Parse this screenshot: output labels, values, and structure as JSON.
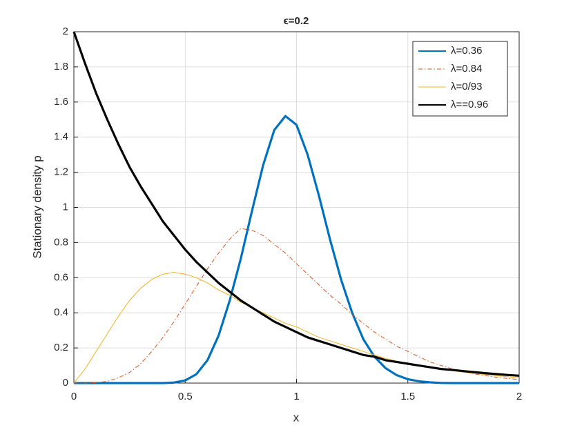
{
  "chart_data": {
    "type": "line",
    "title": "ϵ=0.2",
    "xlabel": "x",
    "ylabel": "Stationary density p",
    "x": [
      0,
      0.05,
      0.1,
      0.15,
      0.2,
      0.25,
      0.3,
      0.35,
      0.4,
      0.45,
      0.5,
      0.55,
      0.6,
      0.65,
      0.7,
      0.75,
      0.8,
      0.85,
      0.9,
      0.95,
      1,
      1.05,
      1.1,
      1.15,
      1.2,
      1.25,
      1.3,
      1.35,
      1.4,
      1.45,
      1.5,
      1.55,
      1.6,
      1.65,
      1.7,
      1.75,
      1.8,
      1.85,
      1.9,
      1.95,
      2
    ],
    "series": [
      {
        "name": "λ=0.36",
        "color": "#0072bd",
        "width": 3.2,
        "dash": "solid",
        "values": [
          0,
          0,
          0,
          0,
          0,
          0,
          0,
          0,
          0,
          0.003,
          0.015,
          0.05,
          0.13,
          0.27,
          0.47,
          0.71,
          0.98,
          1.24,
          1.44,
          1.52,
          1.47,
          1.3,
          1.07,
          0.82,
          0.59,
          0.4,
          0.25,
          0.15,
          0.085,
          0.045,
          0.022,
          0.01,
          0.004,
          0.001,
          0,
          0,
          0,
          0,
          0,
          0,
          0
        ]
      },
      {
        "name": "λ=0.84",
        "color": "#d95319",
        "width": 1,
        "dash": "dashdot",
        "values": [
          0,
          0,
          0.002,
          0.01,
          0.03,
          0.06,
          0.11,
          0.18,
          0.26,
          0.35,
          0.45,
          0.55,
          0.65,
          0.74,
          0.82,
          0.88,
          0.87,
          0.84,
          0.79,
          0.74,
          0.68,
          0.62,
          0.56,
          0.5,
          0.45,
          0.39,
          0.34,
          0.29,
          0.25,
          0.21,
          0.18,
          0.15,
          0.12,
          0.1,
          0.08,
          0.065,
          0.052,
          0.042,
          0.033,
          0.026,
          0.02
        ]
      },
      {
        "name": "λ=0/93",
        "color": "#edb120",
        "width": 1,
        "dash": "solid",
        "values": [
          0,
          0.08,
          0.18,
          0.28,
          0.38,
          0.47,
          0.54,
          0.59,
          0.62,
          0.63,
          0.62,
          0.6,
          0.57,
          0.53,
          0.5,
          0.46,
          0.43,
          0.4,
          0.37,
          0.34,
          0.32,
          0.29,
          0.26,
          0.24,
          0.22,
          0.2,
          0.18,
          0.16,
          0.14,
          0.125,
          0.11,
          0.1,
          0.09,
          0.08,
          0.07,
          0.062,
          0.055,
          0.048,
          0.042,
          0.036,
          0.03
        ]
      },
      {
        "name": "λ==0.96",
        "color": "#000000",
        "width": 3.2,
        "dash": "solid",
        "values": [
          2,
          1.82,
          1.65,
          1.5,
          1.36,
          1.23,
          1.12,
          1.02,
          0.92,
          0.84,
          0.76,
          0.69,
          0.63,
          0.57,
          0.52,
          0.47,
          0.43,
          0.39,
          0.35,
          0.32,
          0.29,
          0.26,
          0.24,
          0.22,
          0.2,
          0.18,
          0.16,
          0.15,
          0.13,
          0.12,
          0.11,
          0.1,
          0.09,
          0.08,
          0.075,
          0.068,
          0.062,
          0.056,
          0.051,
          0.046,
          0.042
        ]
      }
    ],
    "xlim": [
      0,
      2
    ],
    "ylim": [
      0,
      2
    ],
    "xticks": [
      0,
      0.5,
      1,
      1.5,
      2
    ],
    "yticks": [
      0,
      0.2,
      0.4,
      0.6,
      0.8,
      1,
      1.2,
      1.4,
      1.6,
      1.8,
      2
    ],
    "grid": true,
    "legend": "top-right"
  }
}
